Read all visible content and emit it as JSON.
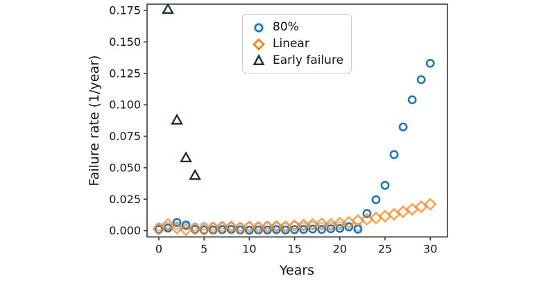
{
  "chart_data": {
    "type": "scatter",
    "title": "",
    "xlabel": "Years",
    "ylabel": "Failure rate (1/year)",
    "xlim": [
      -1.3,
      31.9
    ],
    "ylim": [
      -0.005,
      0.18
    ],
    "xticks": [
      0,
      5,
      10,
      15,
      20,
      25,
      30
    ],
    "xtick_labels": [
      "0",
      "5",
      "10",
      "15",
      "20",
      "25",
      "30"
    ],
    "yticks": [
      0.0,
      0.025,
      0.05,
      0.075,
      0.1,
      0.125,
      0.15,
      0.175
    ],
    "ytick_labels": [
      "0.000",
      "0.025",
      "0.050",
      "0.075",
      "0.100",
      "0.125",
      "0.150",
      "0.175"
    ],
    "grid": false,
    "legend_position": "upper center-right",
    "series": [
      {
        "name": "80%",
        "marker": "circle",
        "color": "#1f77b4",
        "opacity": 1,
        "zorder": 2,
        "in_legend": true,
        "x": [
          0,
          1,
          2,
          3,
          4,
          5,
          6,
          7,
          8,
          9,
          10,
          11,
          12,
          13,
          14,
          15,
          16,
          17,
          18,
          19,
          20,
          21,
          22,
          23,
          24,
          25,
          26,
          27,
          28,
          29,
          30
        ],
        "y": [
          0.001,
          0.002,
          0.0065,
          0.0045,
          0.001,
          0.0005,
          0.0005,
          0.0008,
          0.001,
          0.0005,
          0.0003,
          0.0005,
          0.0005,
          0.0008,
          0.0005,
          0.0008,
          0.001,
          0.0013,
          0.001,
          0.0015,
          0.0018,
          0.003,
          0.0012,
          0.0136,
          0.0246,
          0.036,
          0.0605,
          0.0824,
          0.104,
          0.12,
          0.133
        ]
      },
      {
        "name": "Linear",
        "marker": "diamond",
        "color": "#ff7f0e",
        "opacity": 0.72,
        "zorder": 3,
        "in_legend": true,
        "x": [
          0,
          1,
          2,
          3,
          4,
          5,
          6,
          7,
          8,
          9,
          10,
          11,
          12,
          13,
          14,
          15,
          16,
          17,
          18,
          19,
          20,
          21,
          22,
          23,
          24,
          25,
          26,
          27,
          28,
          29,
          30
        ],
        "y": [
          0.0015,
          0.005,
          0.002,
          0.0008,
          0.0015,
          0.001,
          0.002,
          0.0025,
          0.003,
          0.002,
          0.003,
          0.0025,
          0.003,
          0.0035,
          0.003,
          0.004,
          0.0045,
          0.005,
          0.0055,
          0.005,
          0.006,
          0.0065,
          0.008,
          0.009,
          0.01,
          0.0115,
          0.013,
          0.015,
          0.017,
          0.019,
          0.021
        ]
      },
      {
        "name": "Early failure",
        "marker": "triangle",
        "color": "#17293a",
        "opacity": 1,
        "zorder": 4,
        "in_legend": true,
        "x": [
          1,
          2,
          3,
          4
        ],
        "y": [
          0.176,
          0.088,
          0.058,
          0.044
        ]
      },
      {
        "name": "unlabeled-constant-rate",
        "marker": "circle",
        "color": "#a9cbe8",
        "opacity": 1,
        "zorder": 1,
        "in_legend": false,
        "x": [
          0,
          1,
          2,
          3,
          4,
          5,
          6,
          7,
          8,
          9,
          10,
          11,
          12,
          13,
          14,
          15,
          16,
          17,
          18,
          19,
          20,
          21,
          22
        ],
        "y": [
          0.003,
          0.0035,
          0.004,
          0.0035,
          0.003,
          0.0035,
          0.0035,
          0.004,
          0.0035,
          0.003,
          0.0035,
          0.0035,
          0.004,
          0.0035,
          0.0035,
          0.004,
          0.0035,
          0.004,
          0.0035,
          0.0035,
          0.004,
          0.0035,
          0.003
        ]
      }
    ],
    "legend_entries": [
      "80%",
      "Linear",
      "Early failure"
    ]
  },
  "colors": {
    "blue": "#1f77b4",
    "orange": "#ff7f0e",
    "dark_navy": "#17293a",
    "light_blue": "#a9cbe8",
    "spine": "#3b3b3b",
    "text": "#111111"
  }
}
